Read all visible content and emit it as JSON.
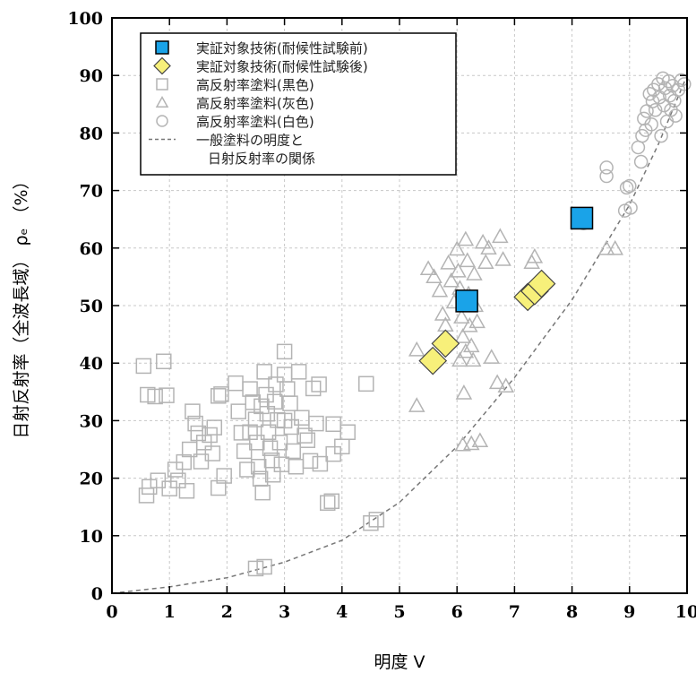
{
  "chart_data": {
    "type": "scatter",
    "xlabel": "明度 V",
    "ylabel": "日射反射率（全波長域） ρₑ （%）",
    "xlim": [
      0,
      10
    ],
    "ylim": [
      0,
      100
    ],
    "xticks": [
      "0",
      "1",
      "2",
      "3",
      "4",
      "5",
      "6",
      "7",
      "8",
      "9",
      "10"
    ],
    "yticks": [
      "0",
      "10",
      "20",
      "30",
      "40",
      "50",
      "60",
      "70",
      "80",
      "90",
      "100"
    ],
    "grid": true,
    "legend_position": "top-left",
    "series": [
      {
        "name": "実証対象技術(耐候性試験前)",
        "marker": "square-filled",
        "color": "#1aa3e8",
        "points": [
          [
            6.17,
            50.8
          ],
          [
            8.17,
            65.2
          ]
        ]
      },
      {
        "name": "実証対象技術(耐候性試験後)",
        "marker": "diamond-filled",
        "color": "#f7f07a",
        "points": [
          [
            5.58,
            40.4
          ],
          [
            5.8,
            43.4
          ],
          [
            7.23,
            51.5
          ],
          [
            7.35,
            52.5
          ],
          [
            7.47,
            53.8
          ]
        ]
      },
      {
        "name": "高反射率塗料(黒色)",
        "marker": "square-open",
        "color": "#b4b4b4",
        "points": [
          [
            0.55,
            39.5
          ],
          [
            0.62,
            34.5
          ],
          [
            0.75,
            34.2
          ],
          [
            0.9,
            40.3
          ],
          [
            0.95,
            34.4
          ],
          [
            0.65,
            18.5
          ],
          [
            0.6,
            17.0
          ],
          [
            0.8,
            19.6
          ],
          [
            1.0,
            18.2
          ],
          [
            1.1,
            21.5
          ],
          [
            1.15,
            19.6
          ],
          [
            1.25,
            22.8
          ],
          [
            1.3,
            17.8
          ],
          [
            1.35,
            25.0
          ],
          [
            1.4,
            31.6
          ],
          [
            1.45,
            29.5
          ],
          [
            1.5,
            27.8
          ],
          [
            1.55,
            22.9
          ],
          [
            1.6,
            26.2
          ],
          [
            1.7,
            27.5
          ],
          [
            1.75,
            24.3
          ],
          [
            1.78,
            28.8
          ],
          [
            1.85,
            34.3
          ],
          [
            1.9,
            34.6
          ],
          [
            1.85,
            18.3
          ],
          [
            1.95,
            20.4
          ],
          [
            2.15,
            36.5
          ],
          [
            2.2,
            31.6
          ],
          [
            2.25,
            27.9
          ],
          [
            2.3,
            24.7
          ],
          [
            2.35,
            21.5
          ],
          [
            2.4,
            35.5
          ],
          [
            2.45,
            33.2
          ],
          [
            2.5,
            30.2
          ],
          [
            2.52,
            26.2
          ],
          [
            2.55,
            22.0
          ],
          [
            2.58,
            19.9
          ],
          [
            2.62,
            17.5
          ],
          [
            2.65,
            38.5
          ],
          [
            2.68,
            34.5
          ],
          [
            2.7,
            31.2
          ],
          [
            2.72,
            28.0
          ],
          [
            2.75,
            25.2
          ],
          [
            2.78,
            23.1
          ],
          [
            2.8,
            20.6
          ],
          [
            2.83,
            33.3
          ],
          [
            2.85,
            36.3
          ],
          [
            2.88,
            30.1
          ],
          [
            2.92,
            26.2
          ],
          [
            2.95,
            22.4
          ],
          [
            3.0,
            42.0
          ],
          [
            3.0,
            38.0
          ],
          [
            3.05,
            35.5
          ],
          [
            3.1,
            33.0
          ],
          [
            3.12,
            28.9
          ],
          [
            3.15,
            24.7
          ],
          [
            3.2,
            22.0
          ],
          [
            3.25,
            38.5
          ],
          [
            3.3,
            30.5
          ],
          [
            3.35,
            27.4
          ],
          [
            3.4,
            26.6
          ],
          [
            3.45,
            23.0
          ],
          [
            3.5,
            35.6
          ],
          [
            3.55,
            29.5
          ],
          [
            3.6,
            36.3
          ],
          [
            3.62,
            22.5
          ],
          [
            3.85,
            29.4
          ],
          [
            3.85,
            24.2
          ],
          [
            4.0,
            25.5
          ],
          [
            4.1,
            28.0
          ],
          [
            4.42,
            36.4
          ],
          [
            4.5,
            12.2
          ],
          [
            4.6,
            12.8
          ],
          [
            2.5,
            4.3
          ],
          [
            2.65,
            4.6
          ],
          [
            3.75,
            15.7
          ],
          [
            3.82,
            16.0
          ],
          [
            2.4,
            28.0
          ],
          [
            2.6,
            32.5
          ],
          [
            3.0,
            30.0
          ]
        ]
      },
      {
        "name": "高反射率塗料(灰色)",
        "marker": "triangle-open",
        "color": "#b4b4b4",
        "points": [
          [
            5.3,
            42.3
          ],
          [
            5.3,
            32.6
          ],
          [
            5.5,
            56.4
          ],
          [
            5.6,
            55.0
          ],
          [
            5.7,
            52.6
          ],
          [
            5.75,
            48.5
          ],
          [
            5.8,
            46.6
          ],
          [
            5.85,
            57.4
          ],
          [
            5.9,
            54.3
          ],
          [
            5.95,
            50.6
          ],
          [
            6.0,
            59.8
          ],
          [
            6.02,
            56.0
          ],
          [
            6.05,
            53.0
          ],
          [
            6.08,
            48.0
          ],
          [
            6.1,
            44.6
          ],
          [
            6.12,
            34.8
          ],
          [
            6.15,
            61.5
          ],
          [
            6.18,
            57.8
          ],
          [
            6.2,
            52.0
          ],
          [
            6.22,
            46.5
          ],
          [
            6.25,
            43.0
          ],
          [
            6.28,
            40.5
          ],
          [
            6.3,
            55.5
          ],
          [
            6.32,
            50.0
          ],
          [
            6.35,
            47.2
          ],
          [
            6.4,
            26.5
          ],
          [
            6.45,
            61.0
          ],
          [
            6.5,
            57.5
          ],
          [
            6.55,
            60.0
          ],
          [
            6.6,
            41.0
          ],
          [
            6.7,
            36.6
          ],
          [
            6.75,
            62.0
          ],
          [
            6.8,
            58.0
          ],
          [
            6.85,
            36.0
          ],
          [
            7.3,
            57.5
          ],
          [
            7.35,
            58.5
          ],
          [
            8.6,
            59.9
          ],
          [
            8.75,
            59.9
          ],
          [
            6.1,
            25.8
          ],
          [
            6.25,
            26.0
          ],
          [
            6.05,
            40.5
          ],
          [
            6.15,
            42.0
          ]
        ]
      },
      {
        "name": "高反射率塗料(白色)",
        "marker": "circle-open",
        "color": "#b4b4b4",
        "points": [
          [
            8.2,
            64.3
          ],
          [
            8.6,
            74.0
          ],
          [
            8.6,
            72.5
          ],
          [
            8.92,
            66.5
          ],
          [
            8.95,
            70.5
          ],
          [
            9.0,
            70.8
          ],
          [
            9.02,
            67.0
          ],
          [
            9.15,
            77.5
          ],
          [
            9.2,
            75.0
          ],
          [
            9.22,
            79.5
          ],
          [
            9.25,
            82.5
          ],
          [
            9.28,
            80.5
          ],
          [
            9.3,
            83.8
          ],
          [
            9.35,
            86.8
          ],
          [
            9.38,
            81.5
          ],
          [
            9.4,
            85.5
          ],
          [
            9.42,
            87.5
          ],
          [
            9.45,
            84.0
          ],
          [
            9.5,
            88.5
          ],
          [
            9.52,
            86.2
          ],
          [
            9.55,
            79.5
          ],
          [
            9.58,
            89.5
          ],
          [
            9.6,
            84.8
          ],
          [
            9.62,
            87.8
          ],
          [
            9.65,
            82.0
          ],
          [
            9.68,
            89.0
          ],
          [
            9.7,
            86.5
          ],
          [
            9.72,
            84.0
          ],
          [
            9.75,
            88.2
          ],
          [
            9.78,
            85.6
          ],
          [
            9.8,
            83.0
          ],
          [
            9.85,
            87.5
          ],
          [
            9.9,
            89.2
          ],
          [
            9.95,
            88.5
          ]
        ]
      },
      {
        "name": "一般塗料の明度と日射反射率の関係",
        "marker": "dashed-line",
        "color": "#777777",
        "points": [
          [
            0,
            0
          ],
          [
            1,
            1.1
          ],
          [
            2,
            2.7
          ],
          [
            3,
            5.4
          ],
          [
            4,
            9.2
          ],
          [
            5,
            15.8
          ],
          [
            6,
            25.5
          ],
          [
            7,
            37.5
          ],
          [
            8,
            51.0
          ],
          [
            9,
            67.5
          ],
          [
            9.5,
            78.0
          ],
          [
            10,
            90.0
          ]
        ]
      }
    ],
    "legend": {
      "items": [
        {
          "label": "実証対象技術(耐候性試験前)",
          "marker": "square-filled",
          "color": "#1aa3e8"
        },
        {
          "label": "実証対象技術(耐候性試験後)",
          "marker": "diamond-filled",
          "color": "#f7f07a"
        },
        {
          "label": "高反射率塗料(黒色)",
          "marker": "square-open",
          "color": "#b4b4b4"
        },
        {
          "label": "高反射率塗料(灰色)",
          "marker": "triangle-open",
          "color": "#b4b4b4"
        },
        {
          "label": "高反射率塗料(白色)",
          "marker": "circle-open",
          "color": "#b4b4b4"
        },
        {
          "label": "一般塗料の明度と",
          "marker": "dashed-line",
          "color": "#777777"
        },
        {
          "label": "日射反射率の関係",
          "marker": "none",
          "color": "#777777"
        }
      ]
    }
  }
}
